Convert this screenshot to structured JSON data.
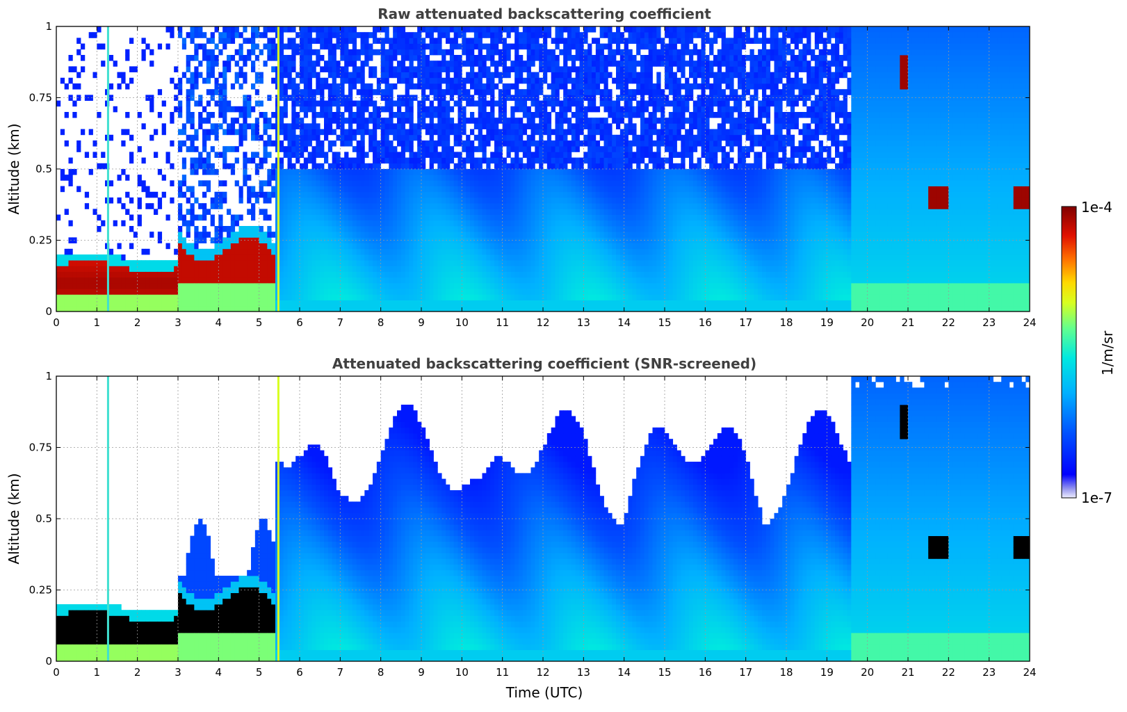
{
  "chart_data": [
    {
      "type": "heatmap",
      "title": "Raw attenuated backscattering coefficient",
      "xlabel": "",
      "ylabel": "Altitude (km)",
      "xlim": [
        0,
        24
      ],
      "ylim": [
        0,
        1
      ],
      "x_ticks": [
        "0",
        "1",
        "2",
        "3",
        "4",
        "5",
        "6",
        "7",
        "8",
        "9",
        "10",
        "11",
        "12",
        "13",
        "14",
        "15",
        "16",
        "17",
        "18",
        "19",
        "20",
        "21",
        "22",
        "23",
        "24"
      ],
      "y_ticks": [
        "0",
        "0.25",
        "0.5",
        "0.75",
        "1"
      ],
      "grid": true,
      "screened": false
    },
    {
      "type": "heatmap",
      "title": "Attenuated backscattering coefficient (SNR-screened)",
      "xlabel": "Time (UTC)",
      "ylabel": "Altitude (km)",
      "xlim": [
        0,
        24
      ],
      "ylim": [
        0,
        1
      ],
      "x_ticks": [
        "0",
        "1",
        "2",
        "3",
        "4",
        "5",
        "6",
        "7",
        "8",
        "9",
        "10",
        "11",
        "12",
        "13",
        "14",
        "15",
        "16",
        "17",
        "18",
        "19",
        "20",
        "21",
        "22",
        "23",
        "24"
      ],
      "y_ticks": [
        "0",
        "0.25",
        "0.5",
        "0.75",
        "1"
      ],
      "grid": true,
      "screened": true
    }
  ],
  "colorbar": {
    "label": "1/m/sr",
    "max_label": "1e-4",
    "min_label": "1e-7",
    "scale": "log",
    "colormap": "jet"
  }
}
